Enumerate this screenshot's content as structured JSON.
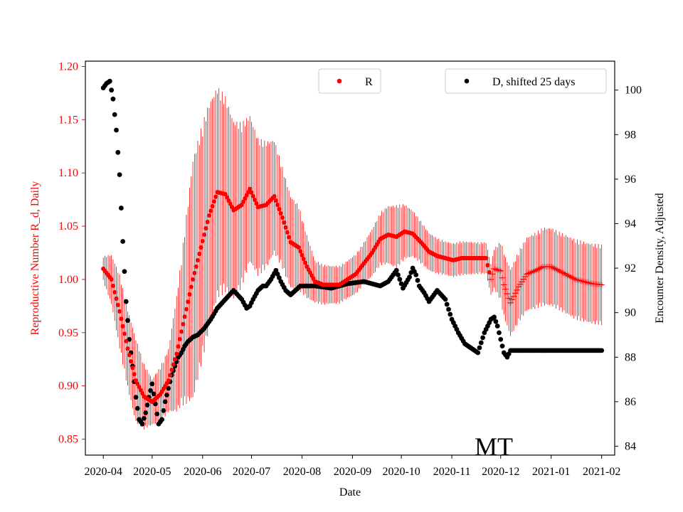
{
  "chart_data": {
    "type": "scatter",
    "xlabel": "Date",
    "ylabel_left": "Reproductive Number R_d, Daily",
    "ylabel_right": "Encounter Density, Adjusted",
    "annotation": "MT",
    "left_ylim": [
      0.835,
      1.205
    ],
    "right_ylim": [
      83.6,
      101.3
    ],
    "x_range_days": [
      -11,
      314
    ],
    "x_ticks": [
      {
        "label": "2020-04",
        "day": 0
      },
      {
        "label": "2020-05",
        "day": 30
      },
      {
        "label": "2020-06",
        "day": 61
      },
      {
        "label": "2020-07",
        "day": 91
      },
      {
        "label": "2020-08",
        "day": 122
      },
      {
        "label": "2020-09",
        "day": 153
      },
      {
        "label": "2020-10",
        "day": 183
      },
      {
        "label": "2020-11",
        "day": 214
      },
      {
        "label": "2020-12",
        "day": 244
      },
      {
        "label": "2021-01",
        "day": 275
      },
      {
        "label": "2021-02",
        "day": 306
      }
    ],
    "left_ticks": [
      "0.85",
      "0.90",
      "0.95",
      "1.00",
      "1.05",
      "1.10",
      "1.15",
      "1.20"
    ],
    "right_ticks": [
      "84",
      "86",
      "88",
      "90",
      "92",
      "94",
      "96",
      "98",
      "100"
    ],
    "legend": {
      "r_label": "R",
      "d_label": "D, shifted 25 days",
      "r_position": "top-center",
      "d_position": "top-right"
    },
    "colors": {
      "r": "#ff0000",
      "d": "#000000",
      "axis_left": "#ff0000",
      "axis_right": "#000000"
    },
    "series": [
      {
        "name": "R",
        "axis": "left",
        "marker": "dot then plus after 2020-11-24",
        "anchors_day": [
          0,
          5,
          10,
          15,
          20,
          25,
          30,
          35,
          40,
          45,
          50,
          55,
          60,
          65,
          70,
          75,
          80,
          85,
          90,
          95,
          100,
          105,
          110,
          115,
          120,
          125,
          130,
          135,
          140,
          145,
          150,
          155,
          160,
          165,
          170,
          175,
          180,
          185,
          190,
          195,
          200,
          205,
          210,
          215,
          220,
          225,
          230,
          235,
          238,
          240,
          244,
          246,
          250,
          255,
          260,
          265,
          270,
          275,
          280,
          285,
          290,
          295,
          300,
          306
        ],
        "anchors_value": [
          1.01,
          1.0,
          0.97,
          0.935,
          0.905,
          0.89,
          0.885,
          0.892,
          0.905,
          0.93,
          0.965,
          1.0,
          1.03,
          1.06,
          1.082,
          1.08,
          1.065,
          1.07,
          1.085,
          1.068,
          1.07,
          1.078,
          1.058,
          1.035,
          1.03,
          1.012,
          0.998,
          0.995,
          0.995,
          0.995,
          1.0,
          1.005,
          1.015,
          1.025,
          1.038,
          1.042,
          1.04,
          1.045,
          1.043,
          1.035,
          1.026,
          1.022,
          1.02,
          1.018,
          1.02,
          1.02,
          1.02,
          1.02,
          1.0,
          1.01,
          1.008,
          0.995,
          0.978,
          0.993,
          1.005,
          1.008,
          1.012,
          1.012,
          1.008,
          1.004,
          1.0,
          0.998,
          0.996,
          0.995
        ],
        "err_anchor_day": [
          0,
          10,
          20,
          30,
          40,
          48,
          55,
          63,
          70,
          80,
          90,
          100,
          110,
          120,
          130,
          140,
          150,
          160,
          170,
          180,
          190,
          200,
          210,
          220,
          230,
          238,
          245,
          250,
          260,
          270,
          280,
          290,
          300,
          306
        ],
        "err_anchor": [
          0.012,
          0.035,
          0.04,
          0.022,
          0.03,
          0.07,
          0.115,
          0.11,
          0.1,
          0.085,
          0.07,
          0.06,
          0.048,
          0.04,
          0.02,
          0.018,
          0.018,
          0.02,
          0.025,
          0.03,
          0.022,
          0.018,
          0.016,
          0.016,
          0.015,
          0.015,
          0.03,
          0.032,
          0.035,
          0.037,
          0.037,
          0.038,
          0.038,
          0.038
        ]
      },
      {
        "name": "D, shifted 25 days",
        "axis": "right",
        "marker": "dot",
        "anchors_day": [
          0,
          2,
          4,
          6,
          8,
          10,
          12,
          14,
          16,
          18,
          20,
          22,
          24,
          26,
          28,
          30,
          32,
          34,
          36,
          38,
          40,
          42,
          44,
          46,
          48,
          50,
          52,
          55,
          58,
          62,
          66,
          70,
          75,
          80,
          85,
          88,
          90,
          92,
          95,
          98,
          100,
          103,
          106,
          109,
          112,
          115,
          118,
          121,
          124,
          130,
          140,
          150,
          160,
          170,
          175,
          180,
          182,
          184,
          188,
          190,
          192,
          194,
          197,
          200,
          205,
          210,
          214,
          218,
          222,
          226,
          230,
          234,
          238,
          240,
          242,
          244,
          246,
          248,
          250,
          252,
          254,
          256,
          258,
          260,
          270,
          280,
          290,
          300,
          306
        ],
        "anchors_value": [
          100.1,
          100.3,
          100.4,
          99.6,
          98.2,
          96.2,
          93.2,
          90.5,
          88.8,
          87.6,
          86.2,
          85.2,
          85.0,
          85.5,
          86.2,
          86.8,
          85.9,
          85.0,
          85.2,
          86.0,
          86.6,
          87.2,
          87.6,
          88.0,
          88.2,
          88.5,
          88.7,
          88.9,
          89.0,
          89.3,
          89.7,
          90.2,
          90.6,
          91.0,
          90.6,
          90.2,
          90.3,
          90.6,
          91.0,
          91.2,
          91.2,
          91.5,
          91.9,
          91.4,
          91.0,
          90.8,
          91.0,
          91.2,
          91.2,
          91.2,
          91.1,
          91.3,
          91.4,
          91.2,
          91.4,
          91.9,
          91.5,
          91.1,
          91.6,
          92.0,
          91.7,
          91.2,
          90.9,
          90.5,
          91.0,
          90.6,
          89.7,
          89.1,
          88.6,
          88.4,
          88.2,
          89.1,
          89.7,
          89.8,
          89.4,
          88.8,
          88.2,
          88.0,
          88.3,
          88.3,
          88.3,
          88.3,
          88.3,
          88.3,
          88.3,
          88.3,
          88.3,
          88.3,
          88.3
        ]
      }
    ]
  }
}
